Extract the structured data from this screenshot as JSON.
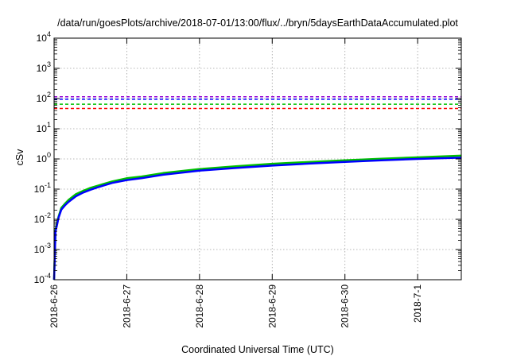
{
  "chart_data": {
    "type": "line",
    "title": "/data/run/goesPlots/archive/2018-07-01/13:00/flux/../bryn/5daysEarthDataAccumulated.plot",
    "xlabel": "Coordinated Universal Time (UTC)",
    "ylabel": "cSv",
    "y_scale": "log",
    "ylim": [
      0.0001,
      10000
    ],
    "xlim": [
      0,
      5.6
    ],
    "x_ticks": [
      {
        "value": 0,
        "label": "2018-6-26"
      },
      {
        "value": 1,
        "label": "2018-6-27"
      },
      {
        "value": 2,
        "label": "2018-6-28"
      },
      {
        "value": 3,
        "label": "2018-6-29"
      },
      {
        "value": 4,
        "label": "2018-6-30"
      },
      {
        "value": 5,
        "label": "2018-7-1"
      }
    ],
    "y_ticks": [
      {
        "value": 0.0001,
        "base": "10",
        "exp": "-4"
      },
      {
        "value": 0.001,
        "base": "10",
        "exp": "-3"
      },
      {
        "value": 0.01,
        "base": "10",
        "exp": "-2"
      },
      {
        "value": 0.1,
        "base": "10",
        "exp": "-1"
      },
      {
        "value": 1,
        "base": "10",
        "exp": "0"
      },
      {
        "value": 10,
        "base": "10",
        "exp": "1"
      },
      {
        "value": 100,
        "base": "10",
        "exp": "2"
      },
      {
        "value": 1000,
        "base": "10",
        "exp": "3"
      },
      {
        "value": 10000,
        "base": "10",
        "exp": "4"
      }
    ],
    "grid": true,
    "legend": "none",
    "thresholds": [
      {
        "value": 115,
        "color": "#9400d3"
      },
      {
        "value": 95,
        "color": "#0000ff"
      },
      {
        "value": 65,
        "color": "#00c000"
      },
      {
        "value": 47,
        "color": "#ff0000"
      }
    ],
    "series": [
      {
        "color": "#00c000",
        "x": [
          0.0,
          0.02,
          0.04,
          0.06,
          0.1,
          0.15,
          0.2,
          0.3,
          0.4,
          0.5,
          0.6,
          0.8,
          1.0,
          1.2,
          1.5,
          2.0,
          2.5,
          3.0,
          3.5,
          4.0,
          4.5,
          5.0,
          5.6
        ],
        "y": [
          0.0001,
          0.0045,
          0.0075,
          0.012,
          0.024,
          0.033,
          0.044,
          0.068,
          0.088,
          0.11,
          0.13,
          0.18,
          0.23,
          0.26,
          0.34,
          0.46,
          0.57,
          0.69,
          0.79,
          0.9,
          1.02,
          1.13,
          1.28
        ]
      },
      {
        "color": "#0000ff",
        "x": [
          0.0,
          0.02,
          0.04,
          0.06,
          0.1,
          0.15,
          0.2,
          0.3,
          0.4,
          0.5,
          0.6,
          0.8,
          1.0,
          1.2,
          1.5,
          2.0,
          2.5,
          3.0,
          3.5,
          4.0,
          4.5,
          5.0,
          5.6
        ],
        "y": [
          0.0001,
          0.004,
          0.0065,
          0.011,
          0.021,
          0.029,
          0.038,
          0.058,
          0.077,
          0.095,
          0.115,
          0.16,
          0.2,
          0.23,
          0.3,
          0.41,
          0.5,
          0.6,
          0.7,
          0.8,
          0.9,
          1.0,
          1.1
        ]
      }
    ]
  }
}
